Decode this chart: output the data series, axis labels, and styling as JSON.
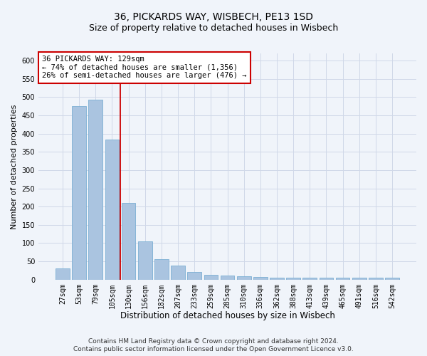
{
  "title1": "36, PICKARDS WAY, WISBECH, PE13 1SD",
  "title2": "Size of property relative to detached houses in Wisbech",
  "xlabel": "Distribution of detached houses by size in Wisbech",
  "ylabel": "Number of detached properties",
  "categories": [
    "27sqm",
    "53sqm",
    "79sqm",
    "105sqm",
    "130sqm",
    "156sqm",
    "182sqm",
    "207sqm",
    "233sqm",
    "259sqm",
    "285sqm",
    "310sqm",
    "336sqm",
    "362sqm",
    "388sqm",
    "413sqm",
    "439sqm",
    "465sqm",
    "491sqm",
    "516sqm",
    "542sqm"
  ],
  "values": [
    30,
    475,
    494,
    383,
    210,
    104,
    57,
    38,
    20,
    13,
    12,
    10,
    8,
    5,
    5,
    5,
    5,
    5,
    5,
    5,
    5
  ],
  "bar_color": "#aac4e0",
  "bar_edge_color": "#7bafd4",
  "grid_color": "#d0d8e8",
  "vline_x_idx": 4,
  "annotation_line1": "36 PICKARDS WAY: 129sqm",
  "annotation_line2": "← 74% of detached houses are smaller (1,356)",
  "annotation_line3": "26% of semi-detached houses are larger (476) →",
  "annotation_box_color": "white",
  "annotation_box_edge_color": "#cc0000",
  "vline_color": "#cc0000",
  "ylim": [
    0,
    620
  ],
  "yticks": [
    0,
    50,
    100,
    150,
    200,
    250,
    300,
    350,
    400,
    450,
    500,
    550,
    600
  ],
  "footer1": "Contains HM Land Registry data © Crown copyright and database right 2024.",
  "footer2": "Contains public sector information licensed under the Open Government Licence v3.0.",
  "bg_color": "#f0f4fa",
  "title1_fontsize": 10,
  "title2_fontsize": 9,
  "xlabel_fontsize": 8.5,
  "ylabel_fontsize": 8,
  "tick_fontsize": 7,
  "footer_fontsize": 6.5,
  "annotation_fontsize": 7.5
}
